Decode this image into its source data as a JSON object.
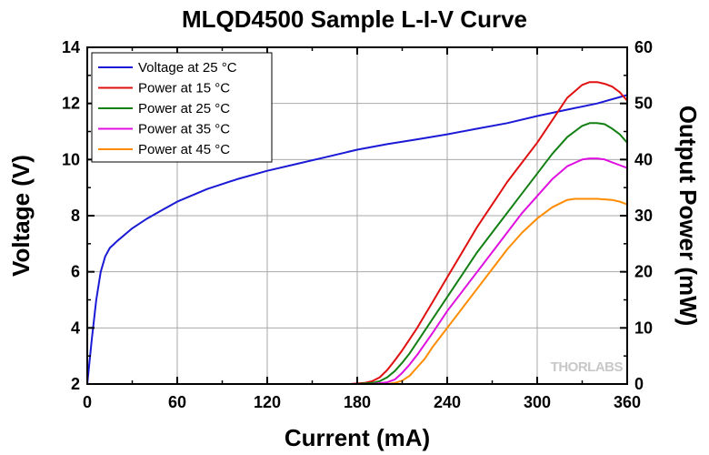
{
  "chart_data": {
    "type": "line",
    "title": "MLQD4500 Sample L-I-V Curve",
    "xlabel": "Current (mA)",
    "ylabel": "Voltage (V)",
    "y2label": "Output Power (mW)",
    "xlim": [
      0,
      360
    ],
    "ylim": [
      2,
      14
    ],
    "y2lim": [
      0,
      60
    ],
    "xticks": [
      0,
      60,
      120,
      180,
      240,
      300,
      360
    ],
    "yticks": [
      2,
      4,
      6,
      8,
      10,
      12,
      14
    ],
    "y2ticks": [
      0,
      10,
      20,
      30,
      40,
      50,
      60
    ],
    "grid": true,
    "legend_position": "top-left",
    "watermark": "THORLABS",
    "series": [
      {
        "name": "Voltage at 25 °C",
        "axis": "left",
        "color": "#1a1ad6",
        "x": [
          0,
          3,
          6,
          9,
          12,
          15,
          20,
          30,
          40,
          50,
          60,
          80,
          100,
          120,
          140,
          160,
          180,
          200,
          220,
          240,
          260,
          280,
          300,
          320,
          340,
          360
        ],
        "y": [
          2.0,
          3.6,
          5.0,
          6.0,
          6.55,
          6.85,
          7.1,
          7.55,
          7.9,
          8.2,
          8.5,
          8.95,
          9.3,
          9.6,
          9.85,
          10.1,
          10.35,
          10.55,
          10.72,
          10.9,
          11.1,
          11.3,
          11.55,
          11.78,
          12.0,
          12.3
        ]
      },
      {
        "name": "Power at 15 °C",
        "axis": "right",
        "color": "#e01010",
        "x": [
          0,
          175,
          185,
          190,
          195,
          200,
          205,
          210,
          220,
          230,
          240,
          250,
          260,
          270,
          280,
          290,
          300,
          310,
          320,
          330,
          335,
          340,
          345,
          350,
          355,
          360
        ],
        "y": [
          0,
          0,
          0.2,
          0.5,
          1.2,
          2.5,
          4.2,
          6.0,
          10.0,
          14.5,
          19.0,
          23.5,
          28.0,
          32.0,
          36.0,
          39.5,
          43.0,
          47.0,
          51.0,
          53.3,
          53.8,
          53.8,
          53.5,
          53.0,
          52.0,
          50.5
        ]
      },
      {
        "name": "Power at 25 °C",
        "axis": "right",
        "color": "#128012",
        "x": [
          0,
          180,
          190,
          195,
          200,
          205,
          210,
          215,
          220,
          230,
          240,
          250,
          260,
          270,
          280,
          290,
          300,
          310,
          320,
          330,
          335,
          340,
          345,
          350,
          355,
          360
        ],
        "y": [
          0,
          0,
          0.2,
          0.5,
          1.2,
          2.3,
          3.8,
          5.5,
          7.5,
          11.5,
          15.5,
          19.5,
          23.5,
          27.0,
          30.5,
          34.0,
          37.5,
          41.0,
          44.0,
          46.0,
          46.5,
          46.5,
          46.3,
          45.5,
          44.5,
          43.0
        ]
      },
      {
        "name": "Power at 35 °C",
        "axis": "right",
        "color": "#e010e0",
        "x": [
          0,
          190,
          200,
          205,
          210,
          215,
          220,
          230,
          240,
          250,
          260,
          270,
          280,
          290,
          300,
          310,
          320,
          330,
          335,
          340,
          345,
          350,
          355,
          360
        ],
        "y": [
          0,
          0,
          0.3,
          0.8,
          2.0,
          3.5,
          5.2,
          9.0,
          13.0,
          16.5,
          20.0,
          23.5,
          27.0,
          30.5,
          33.5,
          36.5,
          38.8,
          40.0,
          40.2,
          40.2,
          40.0,
          39.5,
          39.0,
          38.5
        ]
      },
      {
        "name": "Power at 45 °C",
        "axis": "right",
        "color": "#ff8c00",
        "x": [
          0,
          200,
          205,
          210,
          215,
          220,
          225,
          230,
          240,
          250,
          260,
          270,
          280,
          290,
          300,
          310,
          320,
          325,
          330,
          340,
          350,
          355,
          360
        ],
        "y": [
          0,
          0,
          0.2,
          0.6,
          1.5,
          3.0,
          4.5,
          6.5,
          10.0,
          13.5,
          17.0,
          20.5,
          24.0,
          27.0,
          29.5,
          31.5,
          32.8,
          33.0,
          33.0,
          33.0,
          32.8,
          32.5,
          32.0
        ]
      }
    ]
  }
}
